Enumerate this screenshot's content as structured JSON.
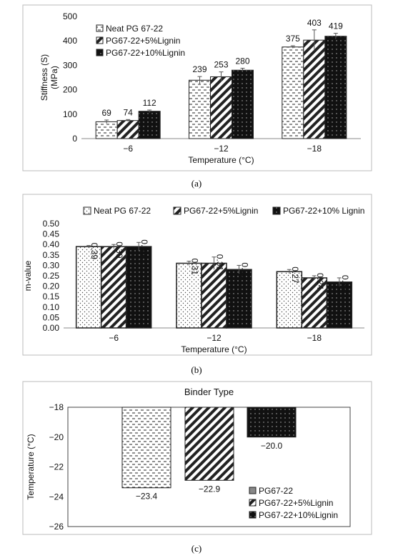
{
  "captions": [
    "(a)",
    "(b)",
    "(c)"
  ],
  "chart_data": [
    {
      "type": "bar",
      "ylabel": "Stiffness (S)\n(MPa)",
      "xlabel": "Temperature (°C)",
      "ylim": [
        0,
        500
      ],
      "yticks": [
        0,
        100,
        200,
        300,
        400,
        500
      ],
      "categories": [
        "−6",
        "−12",
        "−18"
      ],
      "legend_position": "top-left",
      "series": [
        {
          "name": "Neat PG 67-22",
          "values": [
            69,
            239,
            375
          ],
          "errors": [
            7,
            15,
            5
          ],
          "labels": [
            "69",
            "239",
            "375"
          ],
          "pattern": "dash",
          "color": "#ffffff"
        },
        {
          "name": "PG67-22+5%Lignin",
          "values": [
            74,
            253,
            403
          ],
          "errors": [
            4,
            20,
            42
          ],
          "labels": [
            "74",
            "253",
            "403"
          ],
          "pattern": "diag",
          "color": "#ffffff"
        },
        {
          "name": "PG67-22+10%Lignin",
          "values": [
            112,
            280,
            419
          ],
          "errors": [
            5,
            8,
            12
          ],
          "labels": [
            "112",
            "280",
            "419"
          ],
          "pattern": "dark",
          "color": "#111111"
        }
      ]
    },
    {
      "type": "bar",
      "ylabel": "m-value",
      "xlabel": "Temperature (°C)",
      "ylim": [
        0,
        0.5
      ],
      "yticks": [
        "0.00",
        "0.05",
        "0.10",
        "0.15",
        "0.20",
        "0.25",
        "0.30",
        "0.35",
        "0.40",
        "0.45",
        "0.50"
      ],
      "categories": [
        "−6",
        "−12",
        "−18"
      ],
      "legend_position": "top",
      "series": [
        {
          "name": "Neat PG 67-22",
          "values": [
            0.39,
            0.31,
            0.27
          ],
          "errors": [
            0.005,
            0.01,
            0.01
          ],
          "labels": [
            "0.39",
            "0.31",
            "0.27"
          ],
          "pattern": "dots",
          "color": "#ffffff"
        },
        {
          "name": "PG67-22+5%Lignin",
          "values": [
            0.39,
            0.31,
            0.24
          ],
          "errors": [
            0.01,
            0.03,
            0.01
          ],
          "labels": [
            "0.39",
            "0.31",
            "0.24"
          ],
          "pattern": "diag",
          "color": "#ffffff"
        },
        {
          "name": "PG67-22+10% Lignin",
          "values": [
            0.39,
            0.28,
            0.22
          ],
          "errors": [
            0.02,
            0.02,
            0.02
          ],
          "labels": [
            "0.39",
            "0.28",
            "0.22"
          ],
          "pattern": "dark",
          "color": "#111111"
        }
      ]
    },
    {
      "type": "bar",
      "title": "Binder Type",
      "ylabel": "Temperature (°C)",
      "ylim": [
        -26,
        -18
      ],
      "yticks": [
        -18,
        -20,
        -22,
        -24,
        -26
      ],
      "legend_position": "bottom-right",
      "series": [
        {
          "name": "PG67-22",
          "value": -23.4,
          "label": "−23.4",
          "pattern": "dash",
          "color": "#ffffff"
        },
        {
          "name": "PG67-22+5%Lignin",
          "value": -22.9,
          "label": "−22.9",
          "pattern": "diag",
          "color": "#ffffff"
        },
        {
          "name": "PG67-22+10%Lignin",
          "value": -20.0,
          "label": "−20.0",
          "pattern": "dark",
          "color": "#111111"
        }
      ]
    }
  ]
}
